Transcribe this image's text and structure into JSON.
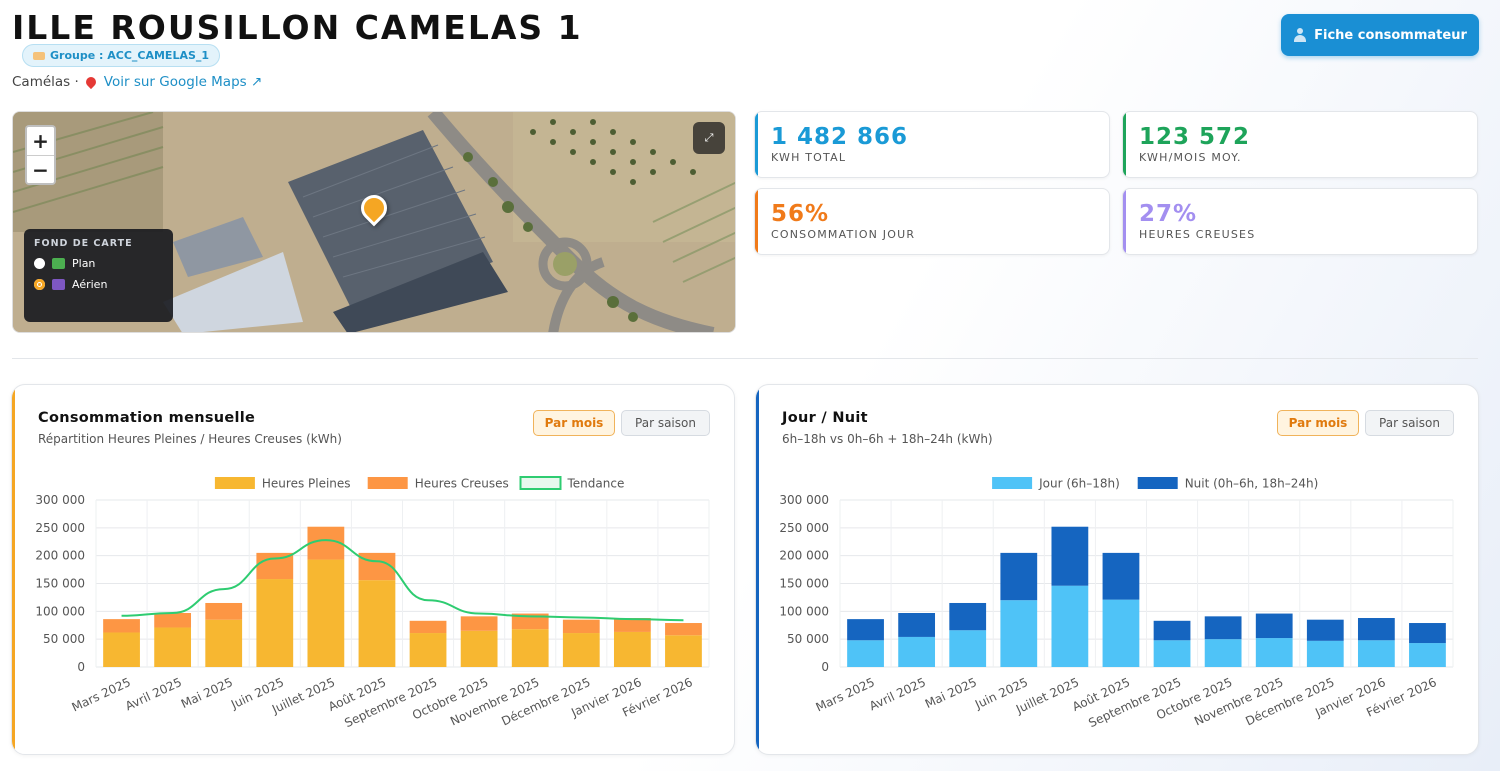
{
  "header": {
    "title": "ILLE ROUSILLON CAMELAS 1",
    "group_badge": "Groupe : ACC_CAMELAS_1",
    "location": "Camélas ·",
    "maps_link": "Voir sur Google Maps ↗",
    "fiche_button": "Fiche consommateur"
  },
  "map": {
    "zoom_in": "+",
    "zoom_out": "−",
    "fullscreen": "⤢",
    "layer_panel": {
      "title": "FOND DE CARTE",
      "options": [
        {
          "label": "Plan",
          "selected": false
        },
        {
          "label": "Aérien",
          "selected": true
        }
      ]
    }
  },
  "kpis": [
    {
      "value": "1 482 866",
      "label": "KWH TOTAL",
      "color": "#1a9ad6"
    },
    {
      "value": "123 572",
      "label": "KWH/MOIS MOY.",
      "color": "#1ea45a"
    },
    {
      "value": "56%",
      "label": "CONSOMMATION JOUR",
      "color": "#f07a1a"
    },
    {
      "value": "27%",
      "label": "HEURES CREUSES",
      "color": "#a38ff0"
    }
  ],
  "cards": {
    "monthly": {
      "title": "Consommation mensuelle",
      "subtitle": "Répartition Heures Pleines / Heures Creuses (kWh)",
      "toggle_active": "Par mois",
      "toggle_inactive": "Par saison",
      "accent": "#f5a623"
    },
    "daynight": {
      "title": "Jour / Nuit",
      "subtitle": "6h–18h vs 0h–6h + 18h–24h (kWh)",
      "toggle_active": "Par mois",
      "toggle_inactive": "Par saison",
      "accent": "#1565c0"
    }
  },
  "chart_data": [
    {
      "type": "bar",
      "stacked": true,
      "categories": [
        "Mars 2025",
        "Avril 2025",
        "Mai 2025",
        "Juin 2025",
        "Juillet 2025",
        "Août 2025",
        "Septembre 2025",
        "Octobre 2025",
        "Novembre 2025",
        "Décembre 2025",
        "Janvier 2026",
        "Février 2026"
      ],
      "series": [
        {
          "name": "Heures Pleines",
          "color": "#f7b731",
          "values": [
            62000,
            71000,
            85000,
            158000,
            193000,
            156000,
            61000,
            65000,
            68000,
            61000,
            63000,
            57000
          ]
        },
        {
          "name": "Heures Creuses",
          "color": "#fd9644",
          "values": [
            24000,
            26000,
            30000,
            47000,
            59000,
            49000,
            22000,
            26000,
            28000,
            24000,
            25000,
            22000
          ]
        },
        {
          "name": "Tendance",
          "type": "line",
          "color": "#2ecc71",
          "values": [
            92000,
            97000,
            140000,
            195000,
            228000,
            190000,
            120000,
            96000,
            91000,
            89000,
            86000,
            84000
          ]
        }
      ],
      "ylim": [
        0,
        300000
      ],
      "yticks": [
        "0",
        "50 000",
        "100 000",
        "150 000",
        "200 000",
        "250 000",
        "300 000"
      ],
      "legend": "top",
      "grid": true
    },
    {
      "type": "bar",
      "stacked": true,
      "categories": [
        "Mars 2025",
        "Avril 2025",
        "Mai 2025",
        "Juin 2025",
        "Juillet 2025",
        "Août 2025",
        "Septembre 2025",
        "Octobre 2025",
        "Novembre 2025",
        "Décembre 2025",
        "Janvier 2026",
        "Février 2026"
      ],
      "series": [
        {
          "name": "Jour (6h–18h)",
          "color": "#4fc3f7",
          "values": [
            48000,
            54000,
            66000,
            120000,
            146000,
            121000,
            48000,
            50000,
            52000,
            47000,
            48000,
            43000
          ]
        },
        {
          "name": "Nuit (0h–6h, 18h–24h)",
          "color": "#1565c0",
          "values": [
            38000,
            43000,
            49000,
            85000,
            106000,
            84000,
            35000,
            41000,
            44000,
            38000,
            40000,
            36000
          ]
        }
      ],
      "ylim": [
        0,
        300000
      ],
      "yticks": [
        "0",
        "50 000",
        "100 000",
        "150 000",
        "200 000",
        "250 000",
        "300 000"
      ],
      "legend": "top",
      "grid": true
    }
  ]
}
